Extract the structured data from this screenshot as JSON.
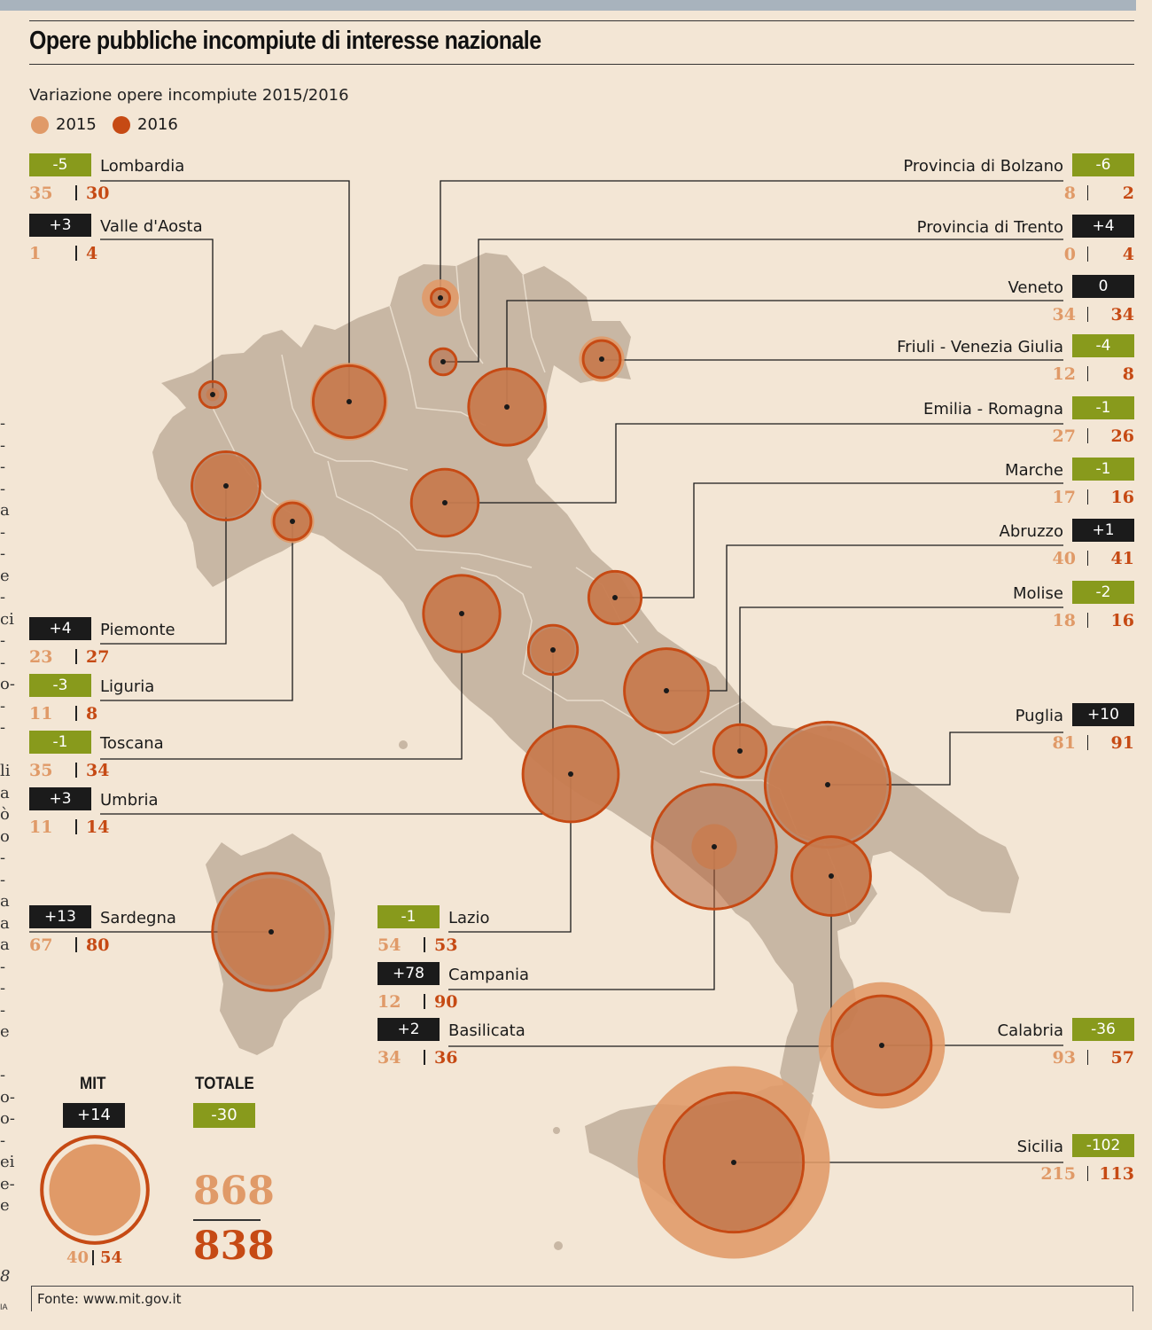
{
  "header": {
    "title": "Opere pubbliche incompiute di interesse nazionale",
    "subtitle": "Variazione opere incompiute 2015/2016",
    "legend": [
      {
        "label": "2015",
        "color": "#e09a68"
      },
      {
        "label": "2016",
        "color": "#c64a14"
      }
    ]
  },
  "colors": {
    "y2015": "#e09a68",
    "y2016": "#c64a14",
    "land": "#c8b7a4",
    "negative_badge": "#889a1c",
    "positive_badge": "#1b1b1b"
  },
  "regions": [
    {
      "name": "Lombardia",
      "change": "-5",
      "v2015": 35,
      "v2016": 30
    },
    {
      "name": "Valle d'Aosta",
      "change": "+3",
      "v2015": 1,
      "v2016": 4
    },
    {
      "name": "Piemonte",
      "change": "+4",
      "v2015": 23,
      "v2016": 27
    },
    {
      "name": "Liguria",
      "change": "-3",
      "v2015": 11,
      "v2016": 8
    },
    {
      "name": "Toscana",
      "change": "-1",
      "v2015": 35,
      "v2016": 34
    },
    {
      "name": "Umbria",
      "change": "+3",
      "v2015": 11,
      "v2016": 14
    },
    {
      "name": "Sardegna",
      "change": "+13",
      "v2015": 67,
      "v2016": 80
    },
    {
      "name": "Lazio",
      "change": "-1",
      "v2015": 54,
      "v2016": 53
    },
    {
      "name": "Campania",
      "change": "+78",
      "v2015": 12,
      "v2016": 90
    },
    {
      "name": "Basilicata",
      "change": "+2",
      "v2015": 34,
      "v2016": 36
    },
    {
      "name": "Provincia di Bolzano",
      "change": "-6",
      "v2015": 8,
      "v2016": 2
    },
    {
      "name": "Provincia di Trento",
      "change": "+4",
      "v2015": 0,
      "v2016": 4
    },
    {
      "name": "Veneto",
      "change": "0",
      "v2015": 34,
      "v2016": 34
    },
    {
      "name": "Friuli - Venezia Giulia",
      "change": "-4",
      "v2015": 12,
      "v2016": 8
    },
    {
      "name": "Emilia - Romagna",
      "change": "-1",
      "v2015": 27,
      "v2016": 26
    },
    {
      "name": "Marche",
      "change": "-1",
      "v2015": 17,
      "v2016": 16
    },
    {
      "name": "Abruzzo",
      "change": "+1",
      "v2015": 40,
      "v2016": 41
    },
    {
      "name": "Molise",
      "change": "-2",
      "v2015": 18,
      "v2016": 16
    },
    {
      "name": "Puglia",
      "change": "+10",
      "v2015": 81,
      "v2016": 91
    },
    {
      "name": "Calabria",
      "change": "-36",
      "v2015": 93,
      "v2016": 57
    },
    {
      "name": "Sicilia",
      "change": "-102",
      "v2015": 215,
      "v2016": 113
    }
  ],
  "mit": {
    "label": "MIT",
    "change": "+14",
    "v2015": 40,
    "v2016": 54
  },
  "total": {
    "label": "TOTALE",
    "change": "-30",
    "v2015": 868,
    "v2016": 838
  },
  "source": "Fonte: www.mit.gov.it",
  "edge_text": {
    "lines": [
      "-",
      "-",
      "-",
      "-",
      "a",
      "-",
      "-",
      "e",
      "-",
      "ci",
      "-",
      "-",
      "o-",
      "-",
      "-",
      "",
      "li",
      "a",
      "ò",
      "o",
      "-",
      "-",
      "a",
      "a",
      "a",
      "-",
      "-",
      "-",
      "e",
      "",
      "-",
      "o-",
      "o-",
      "-",
      "ei",
      "e-",
      "e"
    ],
    "page_number": "8",
    "footer_fragment": "IA"
  }
}
